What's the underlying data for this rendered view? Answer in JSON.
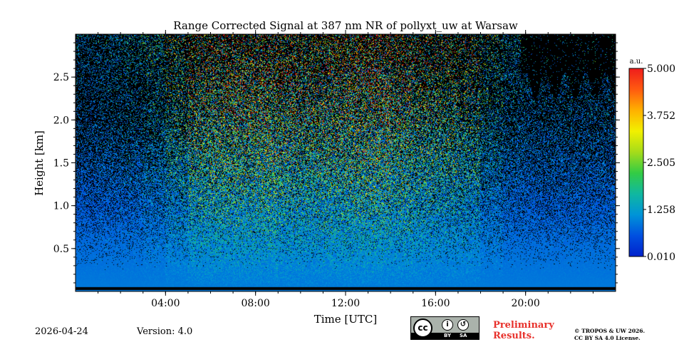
{
  "chart_data": {
    "type": "heatmap",
    "title": "Range Corrected Signal at 387 nm NR of pollyxt_uw at Warsaw",
    "xlabel": "Time [UTC]",
    "ylabel": "Height [km]",
    "x_unit": "hours",
    "xlim": [
      0,
      24
    ],
    "ylim": [
      0,
      3.0
    ],
    "x_ticks": [
      {
        "value": 4,
        "label": "04:00"
      },
      {
        "value": 8,
        "label": "08:00"
      },
      {
        "value": 12,
        "label": "12:00"
      },
      {
        "value": 16,
        "label": "16:00"
      },
      {
        "value": 20,
        "label": "20:00"
      }
    ],
    "x_minor_step": 1,
    "y_ticks": [
      {
        "value": 0.5,
        "label": "0.5"
      },
      {
        "value": 1.0,
        "label": "1.0"
      },
      {
        "value": 1.5,
        "label": "1.5"
      },
      {
        "value": 2.0,
        "label": "2.0"
      },
      {
        "value": 2.5,
        "label": "2.5"
      }
    ],
    "y_minor_step": 0.1,
    "colorbar": {
      "unit": "a.u.",
      "range": [
        0.01,
        5.0
      ],
      "tick_labels": [
        "5.000",
        "3.752",
        "2.505",
        "1.258",
        "0.010"
      ],
      "tick_values": [
        5.0,
        3.752,
        2.505,
        1.258,
        0.01
      ],
      "colormap": [
        "#0022cc",
        "#0050e0",
        "#0094d8",
        "#10b8a0",
        "#33cc44",
        "#a6dc1a",
        "#f2f000",
        "#ffb000",
        "#ff5a10",
        "#ee1c1c"
      ]
    },
    "features": {
      "ground_noise_height_km": 0.05,
      "signal_intensity_by_hour": [
        0.25,
        0.3,
        0.35,
        0.5,
        0.8,
        1.2,
        1.3,
        1.35,
        1.4,
        1.25,
        1.2,
        1.3,
        1.35,
        1.4,
        1.25,
        1.1,
        1.0,
        0.9,
        0.55,
        0.35,
        0.3,
        0.3,
        0.3,
        0.3
      ],
      "no_data_region": {
        "t_start": 19.8,
        "t_end": 24,
        "h_bottom": 2.4,
        "h_top": 3.0
      }
    }
  },
  "footer": {
    "date": "2026-04-24",
    "version": "Version: 4.0",
    "preliminary_line1": "Preliminary",
    "preliminary_line2": "Results.",
    "copyright_line1": "© TROPOS & UW 2026.",
    "copyright_line2": "CC BY SA 4.0 License.",
    "cc_logo": "cc",
    "by_label": "BY",
    "sa_label": "SA"
  }
}
